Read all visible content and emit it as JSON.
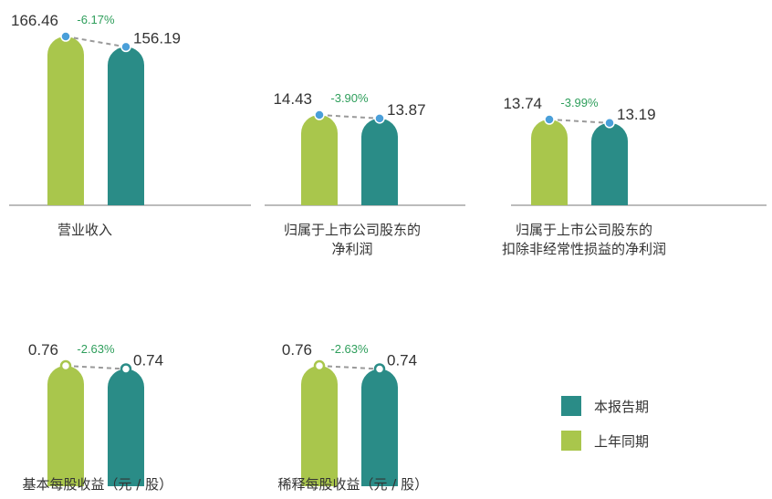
{
  "colors": {
    "current": "#2a8c87",
    "previous": "#a9c64c",
    "marker": "#4a9fd9",
    "change": "#2e9e5b",
    "baseline": "#7a7a7a",
    "connector": "#9a9a9a"
  },
  "legend": {
    "current": "本报告期",
    "previous": "上年同期"
  },
  "chart_data": [
    {
      "type": "bar",
      "category": "营业收入",
      "label_lines": [
        "营业收入"
      ],
      "series": [
        {
          "name": "上年同期",
          "value": 166.46,
          "label": "166.46"
        },
        {
          "name": "本报告期",
          "value": 156.19,
          "label": "156.19"
        }
      ],
      "change": "-6.17%"
    },
    {
      "type": "bar",
      "category": "归属于上市公司股东的净利润",
      "label_lines": [
        "归属于上市公司股东的",
        "净利润"
      ],
      "series": [
        {
          "name": "上年同期",
          "value": 14.43,
          "label": "14.43"
        },
        {
          "name": "本报告期",
          "value": 13.87,
          "label": "13.87"
        }
      ],
      "change": "-3.90%"
    },
    {
      "type": "bar",
      "category": "归属于上市公司股东的扣除非经常性损益的净利润",
      "label_lines": [
        "归属于上市公司股东的",
        "扣除非经常性损益的净利润"
      ],
      "series": [
        {
          "name": "上年同期",
          "value": 13.74,
          "label": "13.74"
        },
        {
          "name": "本报告期",
          "value": 13.19,
          "label": "13.19"
        }
      ],
      "change": "-3.99%"
    },
    {
      "type": "bar",
      "category": "基本每股收益（元 / 股）",
      "label_lines": [
        "基本每股收益（元 / 股）"
      ],
      "series": [
        {
          "name": "上年同期",
          "value": 0.76,
          "label": "0.76"
        },
        {
          "name": "本报告期",
          "value": 0.74,
          "label": "0.74"
        }
      ],
      "change": "-2.63%"
    },
    {
      "type": "bar",
      "category": "稀释每股收益（元 / 股）",
      "label_lines": [
        "稀释每股收益（元 / 股）"
      ],
      "series": [
        {
          "name": "上年同期",
          "value": 0.76,
          "label": "0.76"
        },
        {
          "name": "本报告期",
          "value": 0.74,
          "label": "0.74"
        }
      ],
      "change": "-2.63%"
    }
  ]
}
